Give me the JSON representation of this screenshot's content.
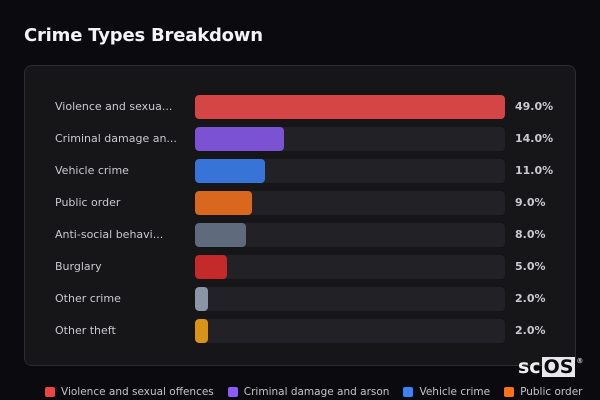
{
  "title": "Crime Types Breakdown",
  "rows": [
    {
      "label": "Violence and sexua...",
      "value": "49.0%",
      "pct": 49.0,
      "color": "#d64545"
    },
    {
      "label": "Criminal damage an...",
      "value": "14.0%",
      "pct": 14.0,
      "color": "#7b52d4"
    },
    {
      "label": "Vehicle crime",
      "value": "11.0%",
      "pct": 11.0,
      "color": "#3874d8"
    },
    {
      "label": "Public order",
      "value": "9.0%",
      "pct": 9.0,
      "color": "#d9681e"
    },
    {
      "label": "Anti-social behavi...",
      "value": "8.0%",
      "pct": 8.0,
      "color": "#5f6b7d"
    },
    {
      "label": "Burglary",
      "value": "5.0%",
      "pct": 5.0,
      "color": "#c42a2a"
    },
    {
      "label": "Other crime",
      "value": "2.0%",
      "pct": 2.0,
      "color": "#8a95a6"
    },
    {
      "label": "Other theft",
      "value": "2.0%",
      "pct": 2.0,
      "color": "#d99418"
    }
  ],
  "legend": [
    {
      "label": "Violence and sexual offences",
      "color": "#ef4444"
    },
    {
      "label": "Criminal damage and arson",
      "color": "#8b5cf6"
    },
    {
      "label": "Vehicle crime",
      "color": "#3b82f6"
    },
    {
      "label": "Public order",
      "color": "#f97316"
    }
  ],
  "watermark": {
    "prefix": "sc",
    "boxed": "OS",
    "reg": "®"
  },
  "chart_data": {
    "type": "bar",
    "orientation": "horizontal",
    "title": "Crime Types Breakdown",
    "categories": [
      "Violence and sexual offences",
      "Criminal damage and arson",
      "Vehicle crime",
      "Public order",
      "Anti-social behaviour",
      "Burglary",
      "Other crime",
      "Other theft"
    ],
    "values": [
      49.0,
      14.0,
      11.0,
      9.0,
      8.0,
      5.0,
      2.0,
      2.0
    ],
    "value_labels": [
      "49.0%",
      "14.0%",
      "11.0%",
      "9.0%",
      "8.0%",
      "5.0%",
      "2.0%",
      "2.0%"
    ],
    "xlabel": "",
    "ylabel": "",
    "xlim": [
      0,
      49
    ],
    "grid": false,
    "legend_position": "bottom"
  }
}
